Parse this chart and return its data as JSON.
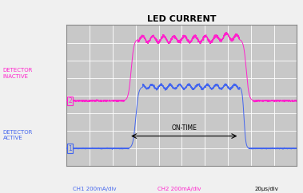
{
  "title": "LED CURRENT",
  "title_fontsize": 8,
  "bg_color": "#f0f0f0",
  "plot_bg_color": "#c8c8c8",
  "grid_color": "#ffffff",
  "xlabel_ch1": "CH1 200mA/div",
  "xlabel_ch2": "CH2 200mA/div",
  "xlabel_time": "20μs/div",
  "label_inactive": "DETECTOR\nINACTIVE",
  "label_active": "DETECTOR\nACTIVE",
  "on_time_label": "ON-TIME",
  "ch1_color": "#4466ee",
  "ch2_color": "#ff22cc",
  "ch1_label_color": "#4466ee",
  "ch2_label_color": "#ff22cc",
  "xlim": [
    0,
    10
  ],
  "ylim": [
    0,
    8
  ],
  "n_grid_x": 10,
  "n_grid_y": 8,
  "ch2_baseline": 3.7,
  "ch2_high": 7.2,
  "ch1_baseline": 1.0,
  "ch1_high": 4.5,
  "rise_start": 2.5,
  "rise_end": 3.1,
  "fall_start": 7.5,
  "fall_end": 8.1,
  "ch1_rise_start": 2.7,
  "ch1_rise_end": 3.3,
  "ch1_fall_start": 7.5,
  "ch1_fall_end": 7.9
}
